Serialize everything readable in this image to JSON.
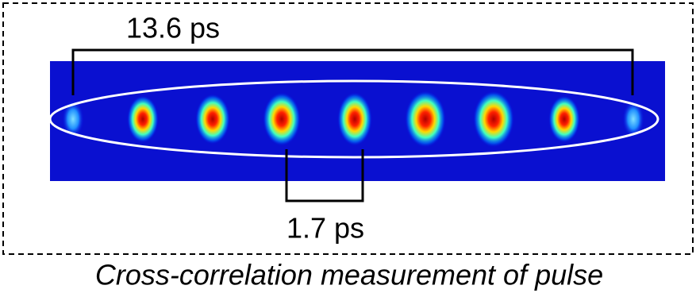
{
  "labels": {
    "total_span": "13.6 ps",
    "pulse_spacing": "1.7 ps"
  },
  "caption": "Cross-correlation measurement of pulse"
}
